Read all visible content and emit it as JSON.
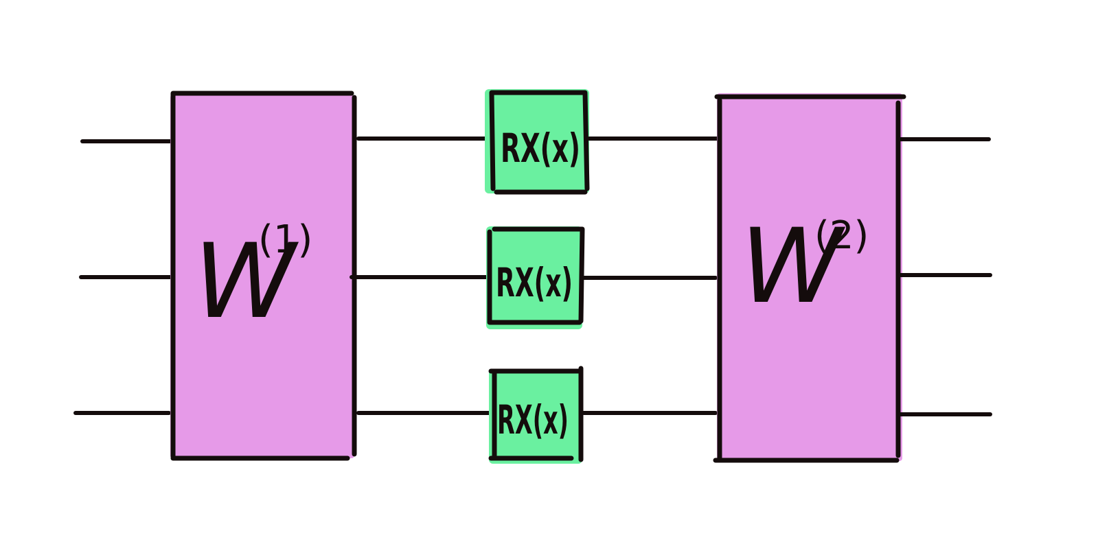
{
  "colors": {
    "ink": "#140c0c",
    "layer_fill": "#e69ae8",
    "gate_fill": "#6af0a0",
    "background": "#ffffff"
  },
  "blocks": {
    "w1": {
      "base": "W",
      "superscript": "(1)"
    },
    "w2": {
      "base": "W",
      "superscript": "(2)"
    }
  },
  "gates": [
    {
      "label": "RX(x)"
    },
    {
      "label": "RX(x)"
    },
    {
      "label": "RX(x)"
    }
  ]
}
